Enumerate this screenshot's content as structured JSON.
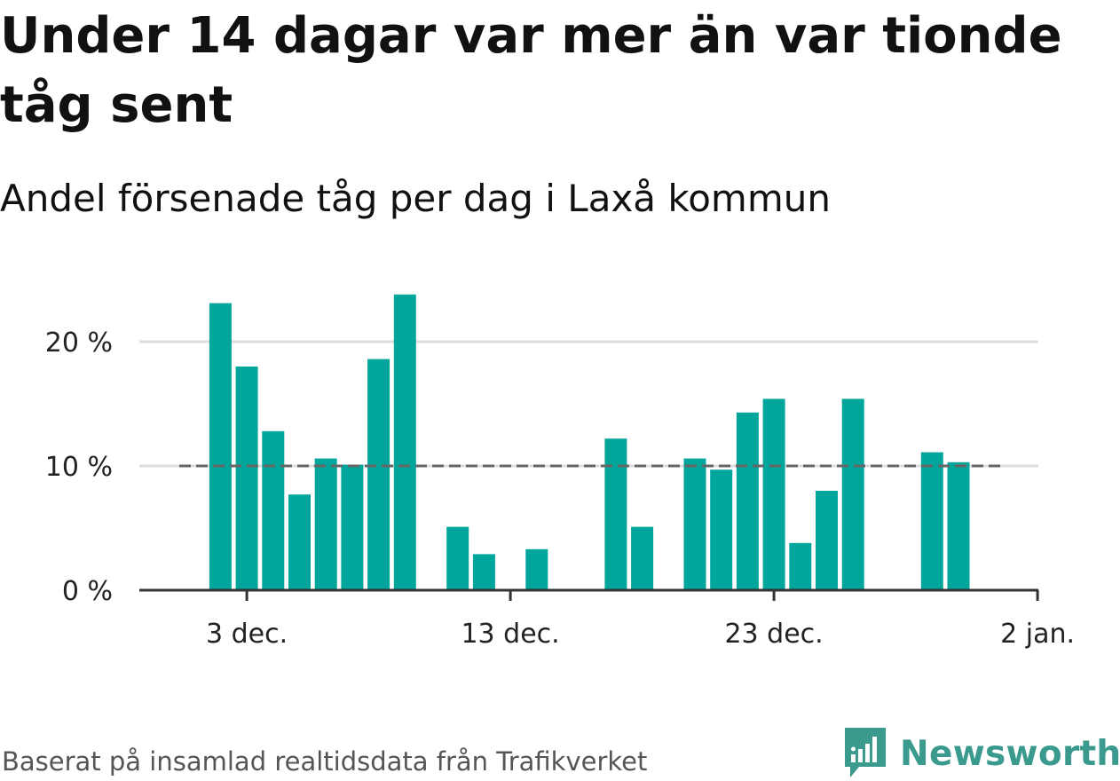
{
  "title": "Under 14 dagar var mer än var tionde tåg sent",
  "subtitle": "Andel försenade tåg per dag i Laxå kommun",
  "source": "Baserat på insamlad realtidsdata från Trafikverket",
  "brand": "Newsworthy",
  "colors": {
    "bar": "#00a69c",
    "reference_line": "#666666",
    "grid": "#dddddd",
    "brand": "#3a9a8e"
  },
  "chart_data": {
    "type": "bar",
    "x_unit": "day",
    "x_start": "2023-11-30",
    "x_end": "2024-01-02",
    "x": [
      "2023-12-02",
      "2023-12-03",
      "2023-12-04",
      "2023-12-05",
      "2023-12-06",
      "2023-12-07",
      "2023-12-08",
      "2023-12-09",
      "2023-12-11",
      "2023-12-12",
      "2023-12-14",
      "2023-12-17",
      "2023-12-18",
      "2023-12-20",
      "2023-12-21",
      "2023-12-22",
      "2023-12-23",
      "2023-12-24",
      "2023-12-25",
      "2023-12-26",
      "2023-12-29",
      "2023-12-30"
    ],
    "values": [
      23.1,
      18.0,
      12.8,
      7.7,
      10.6,
      10.1,
      18.6,
      23.8,
      5.1,
      2.9,
      3.3,
      12.2,
      5.1,
      10.6,
      9.7,
      14.3,
      15.4,
      3.8,
      8.0,
      15.4,
      11.1,
      10.3
    ],
    "ylim": [
      0,
      24
    ],
    "y_ticks": [
      0,
      10,
      20
    ],
    "y_tick_labels": [
      "0 %",
      "10 %",
      "20 %"
    ],
    "x_ticks": [
      "2023-12-03",
      "2023-12-13",
      "2023-12-23",
      "2024-01-02"
    ],
    "x_tick_labels": [
      "3 dec.",
      "13 dec.",
      "23 dec.",
      "2 jan."
    ],
    "reference_line": {
      "value": 10,
      "style": "dashed"
    },
    "grid": true,
    "xlabel": "",
    "ylabel": ""
  }
}
